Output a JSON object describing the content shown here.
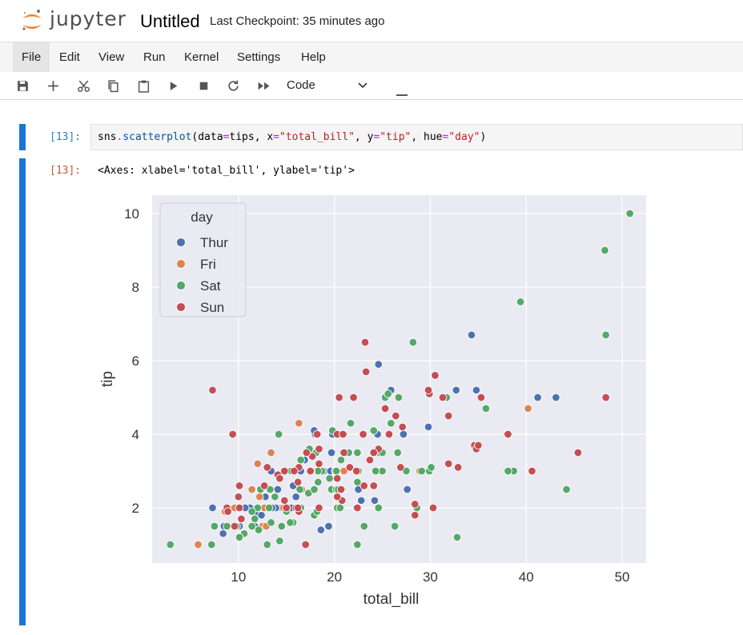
{
  "header": {
    "brand": "jupyter",
    "notebook_title": "Untitled",
    "checkpoint": "Last Checkpoint: 35 minutes ago"
  },
  "menu": [
    "File",
    "Edit",
    "View",
    "Run",
    "Kernel",
    "Settings",
    "Help"
  ],
  "toolbar": {
    "icons": [
      "save-icon",
      "add-icon",
      "cut-icon",
      "copy-icon",
      "paste-icon",
      "run-icon",
      "stop-icon",
      "restart-icon",
      "fast-forward-icon"
    ],
    "cell_type": "Code"
  },
  "cell": {
    "in_prompt": "[13]:",
    "code": {
      "obj": "sns",
      "func": "scatterplot",
      "a1": "data",
      "v1": "tips",
      "a2": "x",
      "v2": "\"total_bill\"",
      "a3": "y",
      "v3": "\"tip\"",
      "a4": "hue",
      "v4": "\"day\""
    },
    "out_prompt": "[13]:",
    "output_text": "<Axes: xlabel='total_bill', ylabel='tip'>"
  },
  "chart_data": {
    "type": "scatter",
    "xlabel": "total_bill",
    "ylabel": "tip",
    "xlim": [
      1.0,
      52.5
    ],
    "ylim": [
      0.5,
      10.5
    ],
    "xticks": [
      10,
      20,
      30,
      40,
      50
    ],
    "yticks": [
      2,
      4,
      6,
      8,
      10
    ],
    "grid": true,
    "background": "#eaeaf2",
    "legend": {
      "title": "day",
      "placement": "top-left"
    },
    "series": [
      {
        "name": "Thur",
        "color": "#4c72b0",
        "points": [
          [
            27.2,
            4.0
          ],
          [
            22.8,
            2.2
          ],
          [
            19.4,
            1.5
          ],
          [
            32.7,
            5.2
          ],
          [
            16.0,
            2.0
          ],
          [
            34.8,
            5.2
          ],
          [
            10.3,
            2.0
          ],
          [
            13.0,
            2.0
          ],
          [
            16.4,
            2.0
          ],
          [
            17.5,
            3.0
          ],
          [
            20.3,
            4.0
          ],
          [
            22.5,
            2.5
          ],
          [
            24.6,
            5.9
          ],
          [
            14.5,
            2.0
          ],
          [
            15.5,
            2.0
          ],
          [
            12.8,
            2.3
          ],
          [
            11.9,
            1.8
          ],
          [
            18.3,
            4.0
          ],
          [
            15.7,
            2.6
          ],
          [
            7.3,
            2.0
          ],
          [
            34.3,
            6.7
          ],
          [
            41.2,
            5.0
          ],
          [
            43.1,
            5.0
          ],
          [
            13.3,
            2.0
          ],
          [
            18.0,
            4.0
          ],
          [
            16.9,
            3.3
          ],
          [
            17.9,
            4.1
          ],
          [
            27.6,
            2.5
          ],
          [
            24.5,
            4.0
          ],
          [
            8.5,
            1.5
          ],
          [
            10.3,
            1.7
          ],
          [
            29.8,
            4.2
          ],
          [
            9.6,
            1.5
          ],
          [
            10.1,
            1.5
          ],
          [
            16.0,
            2.3
          ],
          [
            19.7,
            3.5
          ],
          [
            11.7,
            1.5
          ],
          [
            12.4,
            1.8
          ],
          [
            13.4,
            3.0
          ],
          [
            12.4,
            2.5
          ],
          [
            13.0,
            2.0
          ],
          [
            16.5,
            3.0
          ],
          [
            25.9,
            5.2
          ],
          [
            17.3,
            3.5
          ],
          [
            20.9,
            3.5
          ],
          [
            18.9,
            3.0
          ],
          [
            21.5,
            3.5
          ],
          [
            12.6,
            2.0
          ],
          [
            24.2,
            2.2
          ],
          [
            11.2,
            2.0
          ],
          [
            14.1,
            2.5
          ],
          [
            19.6,
            3.0
          ],
          [
            13.9,
            2.0
          ],
          [
            13.5,
            2.0
          ],
          [
            10.7,
            2.0
          ],
          [
            22.3,
            2.0
          ],
          [
            9.8,
            1.5
          ],
          [
            8.4,
            1.3
          ],
          [
            18.6,
            1.4
          ],
          [
            20.1,
            4.0
          ],
          [
            19.8,
            4.0
          ]
        ]
      },
      {
        "name": "Fri",
        "color": "#dd8452",
        "points": [
          [
            28.9,
            3.0
          ],
          [
            21.0,
            3.0
          ],
          [
            12.5,
            1.5
          ],
          [
            22.5,
            3.5
          ],
          [
            40.2,
            4.7
          ],
          [
            15.4,
            3.0
          ],
          [
            12.9,
            1.5
          ],
          [
            5.8,
            1.0
          ],
          [
            12.0,
            3.2
          ],
          [
            16.3,
            4.3
          ],
          [
            9.6,
            2.0
          ],
          [
            13.4,
            3.5
          ],
          [
            14.7,
            2.0
          ],
          [
            11.4,
            2.5
          ],
          [
            8.6,
            1.9
          ],
          [
            10.1,
            2.0
          ],
          [
            12.2,
            2.3
          ],
          [
            16.6,
            2.5
          ],
          [
            12.7,
            2.0
          ]
        ]
      },
      {
        "name": "Sat",
        "color": "#55a868",
        "points": [
          [
            20.7,
            3.3
          ],
          [
            15.0,
            2.0
          ],
          [
            26.9,
            3.1
          ],
          [
            25.3,
            5.0
          ],
          [
            17.9,
            1.8
          ],
          [
            20.3,
            2.0
          ],
          [
            20.6,
            2.0
          ],
          [
            13.4,
            1.6
          ],
          [
            16.5,
            2.0
          ],
          [
            31.3,
            5.0
          ],
          [
            18.2,
            1.9
          ],
          [
            7.2,
            1.0
          ],
          [
            17.5,
            3.0
          ],
          [
            25.0,
            3.0
          ],
          [
            24.3,
            3.0
          ],
          [
            28.2,
            6.5
          ],
          [
            31.7,
            5.0
          ],
          [
            22.4,
            2.7
          ],
          [
            14.2,
            4.0
          ],
          [
            18.7,
            3.0
          ],
          [
            26.3,
            1.5
          ],
          [
            48.3,
            6.7
          ],
          [
            22.5,
            3.0
          ],
          [
            22.4,
            1.0
          ],
          [
            20.9,
            2.5
          ],
          [
            15.7,
            1.6
          ],
          [
            20.5,
            4.0
          ],
          [
            18.1,
            3.5
          ],
          [
            44.2,
            2.5
          ],
          [
            48.2,
            9.0
          ],
          [
            50.8,
            10.0
          ],
          [
            32.8,
            1.2
          ],
          [
            29.9,
            3.0
          ],
          [
            39.4,
            7.6
          ],
          [
            38.7,
            3.0
          ],
          [
            38.1,
            3.0
          ],
          [
            35.8,
            4.7
          ],
          [
            24.6,
            2.0
          ],
          [
            24.1,
            4.1
          ],
          [
            26.6,
            3.5
          ],
          [
            25.6,
            5.1
          ],
          [
            19.8,
            4.1
          ],
          [
            14.3,
            1.1
          ],
          [
            20.8,
            2.5
          ],
          [
            24.7,
            3.5
          ],
          [
            13.2,
            2.0
          ],
          [
            10.6,
            1.3
          ],
          [
            2.9,
            1.0
          ],
          [
            19.7,
            2.5
          ],
          [
            10.1,
            1.2
          ],
          [
            20.2,
            2.5
          ],
          [
            12.0,
            2.0
          ],
          [
            11.4,
            1.5
          ],
          [
            15.4,
            1.6
          ],
          [
            11.7,
            1.7
          ],
          [
            12.1,
            1.4
          ],
          [
            14.5,
            1.5
          ],
          [
            17.9,
            3.0
          ],
          [
            21.0,
            4.0
          ],
          [
            28.6,
            2.0
          ],
          [
            30.1,
            3.1
          ],
          [
            16.4,
            2.5
          ],
          [
            23.1,
            1.5
          ],
          [
            25.9,
            4.3
          ],
          [
            22.4,
            3.5
          ],
          [
            21.7,
            4.3
          ],
          [
            17.4,
            3.6
          ],
          [
            17.3,
            2.4
          ],
          [
            17.9,
            2.5
          ],
          [
            9.8,
            1.5
          ],
          [
            13.0,
            1.0
          ],
          [
            12.3,
            2.5
          ],
          [
            27.5,
            3.0
          ],
          [
            13.3,
            2.5
          ],
          [
            19.5,
            2.8
          ],
          [
            18.3,
            3.0
          ],
          [
            20.4,
            2.5
          ],
          [
            25.0,
            3.5
          ],
          [
            29.1,
            3.0
          ],
          [
            15.0,
            1.9
          ],
          [
            20.1,
            3.0
          ],
          [
            15.5,
            3.0
          ],
          [
            21.5,
            3.5
          ],
          [
            8.8,
            1.5
          ],
          [
            16.5,
            3.3
          ],
          [
            7.5,
            1.5
          ],
          [
            18.3,
            2.7
          ],
          [
            13.8,
            2.3
          ],
          [
            20.2,
            3.0
          ],
          [
            11.4,
            1.9
          ],
          [
            26.7,
            5.0
          ]
        ]
      },
      {
        "name": "Sun",
        "color": "#c44e52",
        "points": [
          [
            17.0,
            1.0
          ],
          [
            10.3,
            1.7
          ],
          [
            21.0,
            3.5
          ],
          [
            23.7,
            3.3
          ],
          [
            24.6,
            3.6
          ],
          [
            25.3,
            4.7
          ],
          [
            8.8,
            2.0
          ],
          [
            26.9,
            3.1
          ],
          [
            15.0,
            2.0
          ],
          [
            18.4,
            3.6
          ],
          [
            24.1,
            3.5
          ],
          [
            16.0,
            2.0
          ],
          [
            16.3,
            3.1
          ],
          [
            14.8,
            3.0
          ],
          [
            21.6,
            3.1
          ],
          [
            22.3,
            3.0
          ],
          [
            20.7,
            2.5
          ],
          [
            14.1,
            2.9
          ],
          [
            23.0,
            4.0
          ],
          [
            20.3,
            2.8
          ],
          [
            17.7,
            3.4
          ],
          [
            9.6,
            1.5
          ],
          [
            29.9,
            5.1
          ],
          [
            30.5,
            5.6
          ],
          [
            31.3,
            5.0
          ],
          [
            24.1,
            2.6
          ],
          [
            35.3,
            5.0
          ],
          [
            38.0,
            4.0
          ],
          [
            23.3,
            5.7
          ],
          [
            27.1,
            4.2
          ],
          [
            28.4,
            2.1
          ],
          [
            30.3,
            2.0
          ],
          [
            22.4,
            2.0
          ],
          [
            40.6,
            3.0
          ],
          [
            20.3,
            4.0
          ],
          [
            20.8,
            2.2
          ],
          [
            25.7,
            4.0
          ],
          [
            18.4,
            3.2
          ],
          [
            14.3,
            2.8
          ],
          [
            17.6,
            3.0
          ],
          [
            10.0,
            2.3
          ],
          [
            15.0,
            2.0
          ],
          [
            16.3,
            1.9
          ],
          [
            34.6,
            3.7
          ],
          [
            31.9,
            3.2
          ],
          [
            10.1,
            2.0
          ],
          [
            28.4,
            1.8
          ],
          [
            18.2,
            4.0
          ],
          [
            29.8,
            5.2
          ],
          [
            32.9,
            3.1
          ],
          [
            34.8,
            3.6
          ],
          [
            20.5,
            5.0
          ],
          [
            23.2,
            6.5
          ],
          [
            38.1,
            4.0
          ],
          [
            48.3,
            5.0
          ],
          [
            8.9,
            1.9
          ],
          [
            7.3,
            5.2
          ],
          [
            9.4,
            4.0
          ],
          [
            10.1,
            2.6
          ],
          [
            20.3,
            2.3
          ],
          [
            35.0,
            3.7
          ],
          [
            16.2,
            2.7
          ],
          [
            14.8,
            2.2
          ],
          [
            20.9,
            4.0
          ],
          [
            45.4,
            3.5
          ],
          [
            22.0,
            5.0
          ],
          [
            31.9,
            4.5
          ],
          [
            16.2,
            2.0
          ],
          [
            18.4,
            2.0
          ],
          [
            26.4,
            4.5
          ],
          [
            13.0,
            3.1
          ],
          [
            15.8,
            3.0
          ],
          [
            17.5,
            3.0
          ],
          [
            17.1,
            3.5
          ],
          [
            23.1,
            2.6
          ],
          [
            12.7,
            2.6
          ]
        ]
      }
    ]
  }
}
